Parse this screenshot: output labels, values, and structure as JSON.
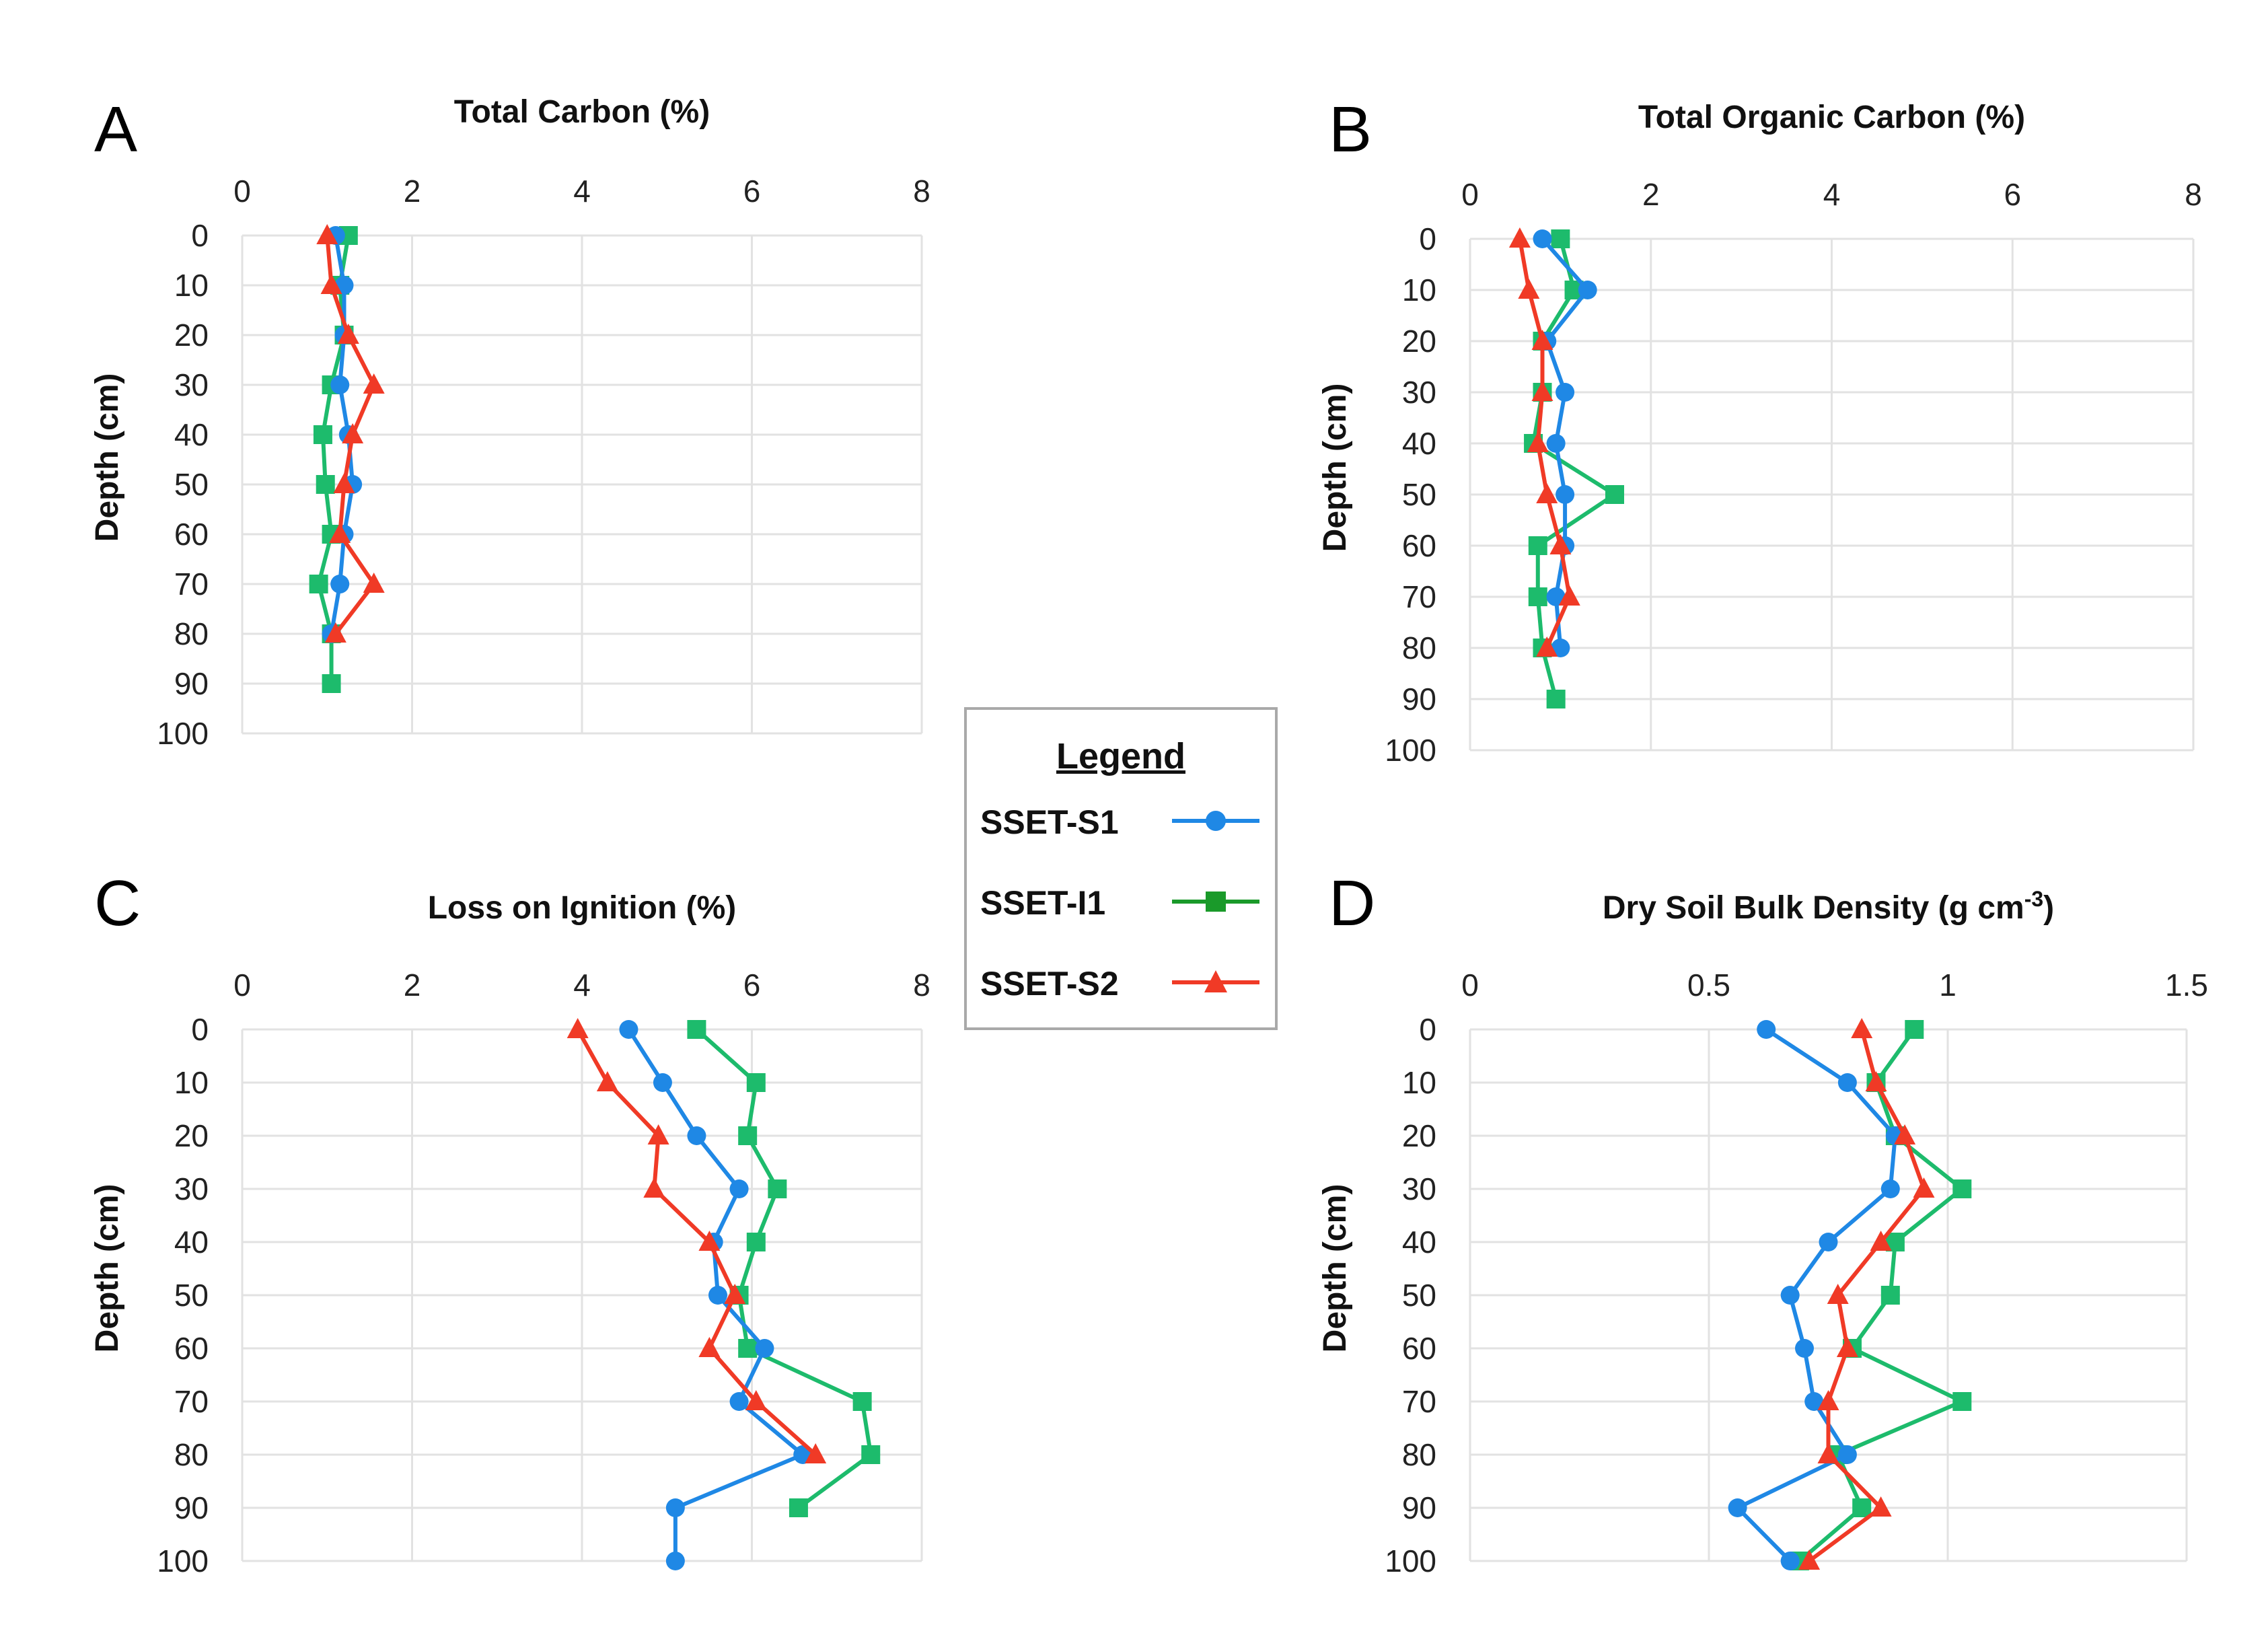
{
  "legend": {
    "title": "Legend",
    "series": [
      {
        "name": "SSET-S1",
        "color": "#1f88e5",
        "marker": "circle"
      },
      {
        "name": "SSET-I1",
        "color": "#1dbb6c",
        "marker": "square"
      },
      {
        "name": "SSET-S2",
        "color": "#f03a26",
        "marker": "triangle"
      }
    ]
  },
  "chart_data": [
    {
      "panel": "A",
      "type": "line",
      "title": "Total Carbon (%)",
      "xlabel": "Total Carbon (%)",
      "ylabel": "Depth (cm)",
      "xlim": [
        0,
        8
      ],
      "xticks": [
        0,
        2,
        4,
        6,
        8
      ],
      "xtick_labels": [
        "0",
        "2",
        "4",
        "6",
        "8"
      ],
      "ylim": [
        0,
        100
      ],
      "yticks": [
        0,
        10,
        20,
        30,
        40,
        50,
        60,
        70,
        80,
        90,
        100
      ],
      "ytick_labels": [
        "0",
        "10",
        "20",
        "30",
        "40",
        "50",
        "60",
        "70",
        "80",
        "90",
        "100"
      ],
      "y_inverted": true,
      "grid": true,
      "series": [
        {
          "name": "SSET-S1",
          "depth": [
            0,
            10,
            20,
            30,
            40,
            50,
            60,
            70,
            80
          ],
          "values": [
            1.1,
            1.2,
            1.2,
            1.15,
            1.25,
            1.3,
            1.2,
            1.15,
            1.05
          ]
        },
        {
          "name": "SSET-I1",
          "depth": [
            0,
            10,
            20,
            30,
            40,
            50,
            60,
            70,
            80,
            90
          ],
          "values": [
            1.25,
            1.15,
            1.2,
            1.05,
            0.95,
            0.98,
            1.05,
            0.9,
            1.05,
            1.05
          ]
        },
        {
          "name": "SSET-S2",
          "depth": [
            0,
            10,
            20,
            30,
            40,
            50,
            60,
            70,
            80
          ],
          "values": [
            1.0,
            1.05,
            1.25,
            1.55,
            1.3,
            1.2,
            1.15,
            1.55,
            1.1
          ]
        }
      ]
    },
    {
      "panel": "B",
      "type": "line",
      "title": "Total Organic Carbon (%)",
      "xlabel": "Total Organic Carbon (%)",
      "ylabel": "Depth (cm)",
      "xlim": [
        0,
        8
      ],
      "xticks": [
        0,
        2,
        4,
        6,
        8
      ],
      "xtick_labels": [
        "0",
        "2",
        "4",
        "6",
        "8"
      ],
      "ylim": [
        0,
        100
      ],
      "yticks": [
        0,
        10,
        20,
        30,
        40,
        50,
        60,
        70,
        80,
        90,
        100
      ],
      "ytick_labels": [
        "0",
        "10",
        "20",
        "30",
        "40",
        "50",
        "60",
        "70",
        "80",
        "90",
        "100"
      ],
      "y_inverted": true,
      "grid": true,
      "series": [
        {
          "name": "SSET-S1",
          "depth": [
            0,
            10,
            20,
            30,
            40,
            50,
            60,
            70,
            80
          ],
          "values": [
            0.8,
            1.3,
            0.85,
            1.05,
            0.95,
            1.05,
            1.05,
            0.95,
            1.0
          ]
        },
        {
          "name": "SSET-I1",
          "depth": [
            0,
            10,
            20,
            30,
            40,
            50,
            60,
            70,
            80,
            90
          ],
          "values": [
            1.0,
            1.15,
            0.8,
            0.8,
            0.7,
            1.6,
            0.75,
            0.75,
            0.8,
            0.95
          ]
        },
        {
          "name": "SSET-S2",
          "depth": [
            0,
            10,
            20,
            30,
            40,
            50,
            60,
            70,
            80
          ],
          "values": [
            0.55,
            0.65,
            0.8,
            0.8,
            0.75,
            0.85,
            1.0,
            1.1,
            0.85
          ]
        }
      ]
    },
    {
      "panel": "C",
      "type": "line",
      "title": "Loss on Ignition (%)",
      "xlabel": "Loss on Ignition (%)",
      "ylabel": "Depth (cm)",
      "xlim": [
        0,
        8
      ],
      "xticks": [
        0,
        2,
        4,
        6,
        8
      ],
      "xtick_labels": [
        "0",
        "2",
        "4",
        "6",
        "8"
      ],
      "ylim": [
        0,
        100
      ],
      "yticks": [
        0,
        10,
        20,
        30,
        40,
        50,
        60,
        70,
        80,
        90,
        100
      ],
      "ytick_labels": [
        "0",
        "10",
        "20",
        "30",
        "40",
        "50",
        "60",
        "70",
        "80",
        "90",
        "100"
      ],
      "y_inverted": true,
      "grid": true,
      "series": [
        {
          "name": "SSET-S1",
          "depth": [
            0,
            10,
            20,
            30,
            40,
            50,
            60,
            70,
            80,
            90,
            100
          ],
          "values": [
            4.55,
            4.95,
            5.35,
            5.85,
            5.55,
            5.6,
            6.15,
            5.85,
            6.6,
            5.1,
            5.1
          ]
        },
        {
          "name": "SSET-I1",
          "depth": [
            0,
            10,
            20,
            30,
            40,
            50,
            60,
            70,
            80,
            90
          ],
          "values": [
            5.35,
            6.05,
            5.95,
            6.3,
            6.05,
            5.85,
            5.95,
            7.3,
            7.4,
            6.55
          ]
        },
        {
          "name": "SSET-S2",
          "depth": [
            0,
            10,
            20,
            30,
            40,
            50,
            60,
            70,
            80
          ],
          "values": [
            3.95,
            4.3,
            4.9,
            4.85,
            5.5,
            5.8,
            5.5,
            6.05,
            6.75
          ]
        }
      ]
    },
    {
      "panel": "D",
      "type": "line",
      "title": "Dry Soil Bulk Density (g cm-3)",
      "xlabel": "Dry Soil Bulk Density (g cm-3)",
      "ylabel": "Depth (cm)",
      "xlim": [
        0,
        1.5
      ],
      "xticks": [
        0,
        0.5,
        1,
        1.5
      ],
      "xtick_labels": [
        "0",
        "0.5",
        "1",
        "1.5"
      ],
      "ylim": [
        0,
        100
      ],
      "yticks": [
        0,
        10,
        20,
        30,
        40,
        50,
        60,
        70,
        80,
        90,
        100
      ],
      "ytick_labels": [
        "0",
        "10",
        "20",
        "30",
        "40",
        "50",
        "60",
        "70",
        "80",
        "90",
        "100"
      ],
      "y_inverted": true,
      "grid": true,
      "series": [
        {
          "name": "SSET-S1",
          "depth": [
            0,
            10,
            20,
            30,
            40,
            50,
            60,
            70,
            80,
            90,
            100
          ],
          "values": [
            0.62,
            0.79,
            0.89,
            0.88,
            0.75,
            0.67,
            0.7,
            0.72,
            0.79,
            0.56,
            0.67
          ]
        },
        {
          "name": "SSET-I1",
          "depth": [
            0,
            10,
            20,
            30,
            40,
            50,
            60,
            70,
            80,
            90,
            100
          ],
          "values": [
            0.93,
            0.85,
            0.89,
            1.03,
            0.89,
            0.88,
            0.8,
            1.03,
            0.77,
            0.82,
            0.69
          ]
        },
        {
          "name": "SSET-S2",
          "depth": [
            0,
            10,
            20,
            30,
            40,
            50,
            60,
            70,
            80,
            90,
            100
          ],
          "values": [
            0.82,
            0.85,
            0.91,
            0.95,
            0.86,
            0.77,
            0.79,
            0.75,
            0.75,
            0.86,
            0.71
          ]
        }
      ]
    }
  ]
}
